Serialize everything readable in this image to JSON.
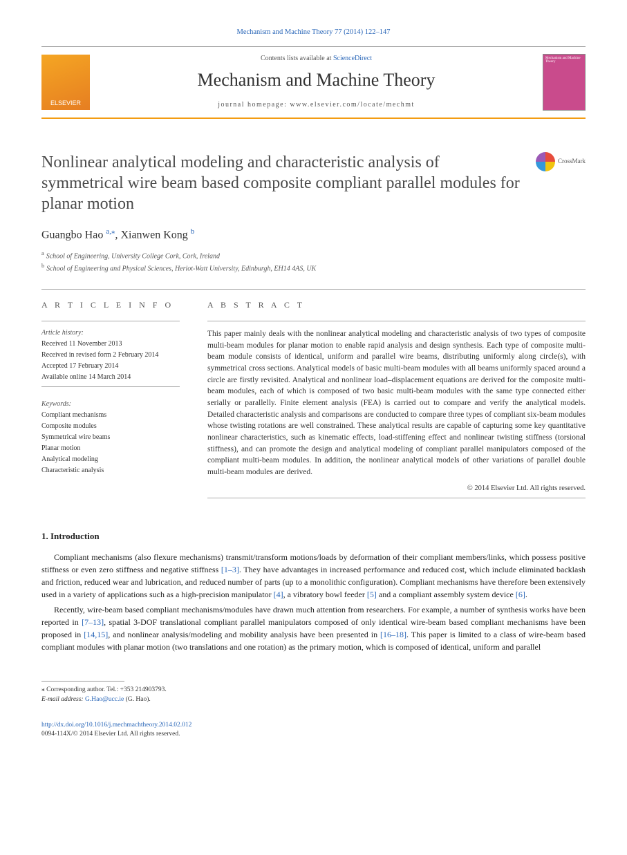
{
  "header": {
    "journal_citation": "Mechanism and Machine Theory 77 (2014) 122–147",
    "contents_prefix": "Contents lists available at ",
    "contents_link": "ScienceDirect",
    "journal_name": "Mechanism and Machine Theory",
    "homepage_prefix": "journal homepage: ",
    "homepage_url": "www.elsevier.com/locate/mechmt",
    "publisher": "ELSEVIER",
    "cover_text": "Mechanism and Machine Theory"
  },
  "title": "Nonlinear analytical modeling and characteristic analysis of symmetrical wire beam based composite compliant parallel modules for planar motion",
  "crossmark_label": "CrossMark",
  "authors": {
    "a1_name": "Guangbo Hao",
    "a1_sup": "a,",
    "a1_star": "⁎",
    "a2_name": ", Xianwen Kong",
    "a2_sup": "b"
  },
  "affiliations": {
    "a": "School of Engineering, University College Cork, Cork, Ireland",
    "b": "School of Engineering and Physical Sciences, Heriot-Watt University, Edinburgh, EH14 4AS, UK"
  },
  "article_info": {
    "heading": "A R T I C L E   I N F O",
    "history_label": "Article history:",
    "received": "Received 11 November 2013",
    "revised": "Received in revised form 2 February 2014",
    "accepted": "Accepted 17 February 2014",
    "online": "Available online 14 March 2014",
    "keywords_label": "Keywords:",
    "kw": [
      "Compliant mechanisms",
      "Composite modules",
      "Symmetrical wire beams",
      "Planar motion",
      "Analytical modeling",
      "Characteristic analysis"
    ]
  },
  "abstract": {
    "heading": "A B S T R A C T",
    "text": "This paper mainly deals with the nonlinear analytical modeling and characteristic analysis of two types of composite multi-beam modules for planar motion to enable rapid analysis and design synthesis. Each type of composite multi-beam module consists of identical, uniform and parallel wire beams, distributing uniformly along circle(s), with symmetrical cross sections. Analytical models of basic multi-beam modules with all beams uniformly spaced around a circle are firstly revisited. Analytical and nonlinear load–displacement equations are derived for the composite multi-beam modules, each of which is composed of two basic multi-beam modules with the same type connected either serially or parallelly. Finite element analysis (FEA) is carried out to compare and verify the analytical models. Detailed characteristic analysis and comparisons are conducted to compare three types of compliant six-beam modules whose twisting rotations are well constrained. These analytical results are capable of capturing some key quantitative nonlinear characteristics, such as kinematic effects, load-stiffening effect and nonlinear twisting stiffness (torsional stiffness), and can promote the design and analytical modeling of compliant parallel manipulators composed of the compliant multi-beam modules. In addition, the nonlinear analytical models of other variations of parallel double multi-beam modules are derived.",
    "copyright": "© 2014 Elsevier Ltd. All rights reserved."
  },
  "intro": {
    "heading": "1. Introduction",
    "p1_a": "Compliant mechanisms (also flexure mechanisms) transmit/transform motions/loads by deformation of their compliant members/links, which possess positive stiffness or even zero stiffness and negative stiffness ",
    "p1_ref1": "[1–3]",
    "p1_b": ". They have advantages in increased performance and reduced cost, which include eliminated backlash and friction, reduced wear and lubrication, and reduced number of parts (up to a monolithic configuration). Compliant mechanisms have therefore been extensively used in a variety of applications such as a high-precision manipulator ",
    "p1_ref2": "[4]",
    "p1_c": ", a vibratory bowl feeder ",
    "p1_ref3": "[5]",
    "p1_d": " and a compliant assembly system device ",
    "p1_ref4": "[6]",
    "p1_e": ".",
    "p2_a": "Recently, wire-beam based compliant mechanisms/modules have drawn much attention from researchers. For example, a number of synthesis works have been reported in ",
    "p2_ref1": "[7–13]",
    "p2_b": ", spatial 3-DOF translational compliant parallel manipulators composed of only identical wire-beam based compliant mechanisms have been proposed in ",
    "p2_ref2": "[14,15]",
    "p2_c": ", and nonlinear analysis/modeling and mobility analysis have been presented in ",
    "p2_ref3": "[16–18]",
    "p2_d": ". This paper is limited to a class of wire-beam based compliant modules with planar motion (two translations and one rotation) as the primary motion, which is composed of identical, uniform and parallel"
  },
  "footnote": {
    "corr_label": "⁎  Corresponding author. Tel.: +353 214903793.",
    "email_label": "E-mail address: ",
    "email": "G.Hao@ucc.ie",
    "email_suffix": " (G. Hao)."
  },
  "doi": {
    "url": "http://dx.doi.org/10.1016/j.mechmachtheory.2014.02.012",
    "line2": "0094-114X/© 2014 Elsevier Ltd. All rights reserved."
  }
}
